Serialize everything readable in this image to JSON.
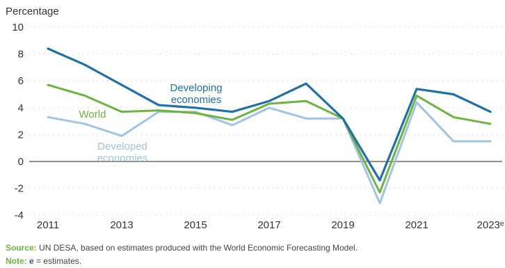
{
  "chart_data": {
    "type": "line",
    "ylabel": "Percentage",
    "ylim": [
      -4,
      10
    ],
    "yticks": [
      -4,
      -2,
      0,
      2,
      4,
      6,
      8,
      10
    ],
    "x": [
      2011,
      2012,
      2013,
      2014,
      2015,
      2016,
      2017,
      2018,
      2019,
      2020,
      2021,
      2022,
      2023
    ],
    "xtick_labels": [
      "2011",
      "2013",
      "2015",
      "2017",
      "2019",
      "2021",
      "2023ᵉ"
    ],
    "grid": "horizontal dotted",
    "series": [
      {
        "name": "Developing economies",
        "name_lines": [
          "Developing",
          "economies"
        ],
        "color": "#1f6fa8",
        "values": [
          8.4,
          7.2,
          5.7,
          4.2,
          4.0,
          3.7,
          4.5,
          5.8,
          3.2,
          -1.4,
          5.4,
          5.0,
          3.7
        ]
      },
      {
        "name": "World",
        "name_lines": [
          "World"
        ],
        "color": "#6db33f",
        "values": [
          5.7,
          4.9,
          3.7,
          3.8,
          3.6,
          3.1,
          4.3,
          4.5,
          3.2,
          -2.3,
          4.9,
          3.3,
          2.8
        ]
      },
      {
        "name": "Developed economies",
        "name_lines": [
          "Developed",
          "economies"
        ],
        "color": "#9fc4e4",
        "values": [
          3.3,
          2.8,
          1.9,
          3.7,
          3.7,
          2.7,
          4.0,
          3.2,
          3.2,
          -3.1,
          4.4,
          1.5,
          1.5
        ]
      }
    ]
  },
  "footer": {
    "source_label": "Source:",
    "source_text": "UN DESA, based on estimates produced with the World Economic Forecasting Model.",
    "note_label": "Note:",
    "note_symbol": "e",
    "note_text": "= estimates."
  }
}
